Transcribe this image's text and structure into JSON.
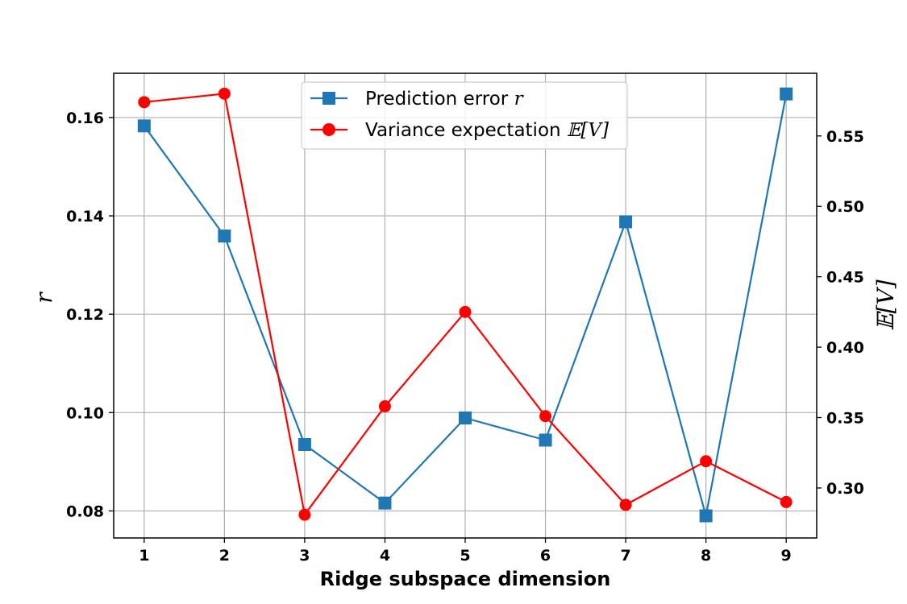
{
  "chart_data": {
    "type": "line",
    "xlabel": "Ridge subspace dimension",
    "ylabel_left": "r",
    "ylabel_right": "𝔼[V]",
    "x": [
      1,
      2,
      3,
      4,
      5,
      6,
      7,
      8,
      9
    ],
    "x_ticks": [
      "1",
      "2",
      "3",
      "4",
      "5",
      "6",
      "7",
      "8",
      "9"
    ],
    "xlim": [
      0.62,
      9.38
    ],
    "ylim_left": [
      0.0745,
      0.169
    ],
    "ylim_right": [
      0.2645,
      0.5945
    ],
    "y_ticks_left": [
      "0.08",
      "0.10",
      "0.12",
      "0.14",
      "0.16"
    ],
    "y_ticks_left_values": [
      0.08,
      0.1,
      0.12,
      0.14,
      0.16
    ],
    "y_ticks_right": [
      "0.30",
      "0.35",
      "0.40",
      "0.45",
      "0.50",
      "0.55"
    ],
    "y_ticks_right_values": [
      0.3,
      0.35,
      0.4,
      0.45,
      0.5,
      0.55
    ],
    "grid": true,
    "legend_position": "top-center",
    "series": [
      {
        "name": "Prediction error r",
        "axis": "left",
        "color": "#1f77b4",
        "marker": "square",
        "values": [
          0.1583,
          0.1359,
          0.0935,
          0.0816,
          0.0989,
          0.0944,
          0.1388,
          0.079,
          0.1648
        ]
      },
      {
        "name": "Variance expectation 𝔼[V]",
        "axis": "right",
        "color": "#ff0000",
        "marker": "circle",
        "values": [
          0.574,
          0.58,
          0.281,
          0.358,
          0.425,
          0.351,
          0.288,
          0.319,
          0.29
        ]
      }
    ]
  },
  "legend": {
    "entries": [
      {
        "prefix": "Prediction error ",
        "symbol": "r"
      },
      {
        "prefix": "Variance expectation ",
        "symbol": "𝔼[V]"
      }
    ]
  }
}
